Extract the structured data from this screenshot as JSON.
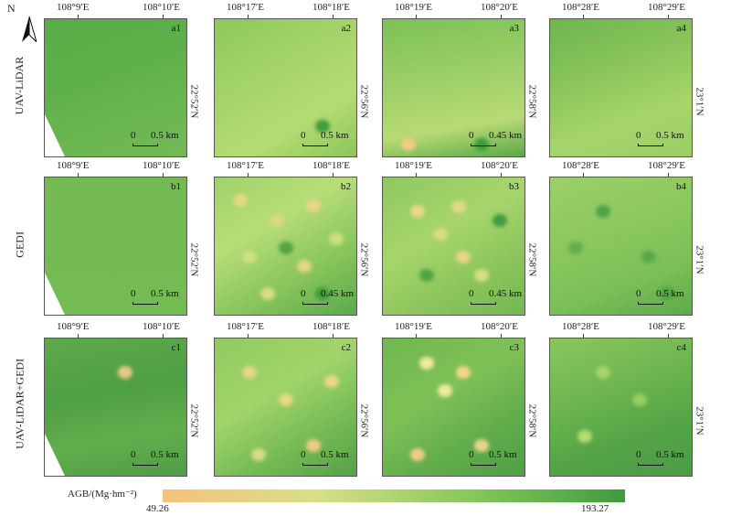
{
  "north_label": "N",
  "rows": [
    "UAV-LiDAR",
    "GEDI",
    "UAV-LiDAR+GEDI"
  ],
  "columns": [
    {
      "lon_left": "108°9′E",
      "lon_right": "108°10′E",
      "lat": "22°52′N"
    },
    {
      "lon_left": "108°17′E",
      "lon_right": "108°18′E",
      "lat": "22°56′N"
    },
    {
      "lon_left": "108°19′E",
      "lon_right": "108°20′E",
      "lat": "22°58′N"
    },
    {
      "lon_left": "108°28′E",
      "lon_right": "108°29′E",
      "lat": "23°1′N"
    }
  ],
  "panels": [
    [
      {
        "id": "a1",
        "sb_zero": "0",
        "sb_dist": "0.5 km"
      },
      {
        "id": "a2",
        "sb_zero": "0",
        "sb_dist": "0.5 km"
      },
      {
        "id": "a3",
        "sb_zero": "0",
        "sb_dist": "0.45 km"
      },
      {
        "id": "a4",
        "sb_zero": "0",
        "sb_dist": "0.5 km"
      }
    ],
    [
      {
        "id": "b1",
        "sb_zero": "0",
        "sb_dist": "0.5 km"
      },
      {
        "id": "b2",
        "sb_zero": "0",
        "sb_dist": "0.45 km"
      },
      {
        "id": "b3",
        "sb_zero": "0",
        "sb_dist": "0.45 km"
      },
      {
        "id": "b4",
        "sb_zero": "0",
        "sb_dist": "0.5 km"
      }
    ],
    [
      {
        "id": "c1",
        "sb_zero": "0",
        "sb_dist": "0.5 km"
      },
      {
        "id": "c2",
        "sb_zero": "0",
        "sb_dist": "0.5 km"
      },
      {
        "id": "c3",
        "sb_zero": "0",
        "sb_dist": "0.5 km"
      },
      {
        "id": "c4",
        "sb_zero": "0",
        "sb_dist": "0.5 km"
      }
    ]
  ],
  "legend": {
    "title": "AGB/(Mg·hm⁻²)",
    "min": "49.26",
    "max": "193.27",
    "colors": [
      "#f5c27a",
      "#d9df86",
      "#86c85a",
      "#3f9b3f"
    ]
  }
}
